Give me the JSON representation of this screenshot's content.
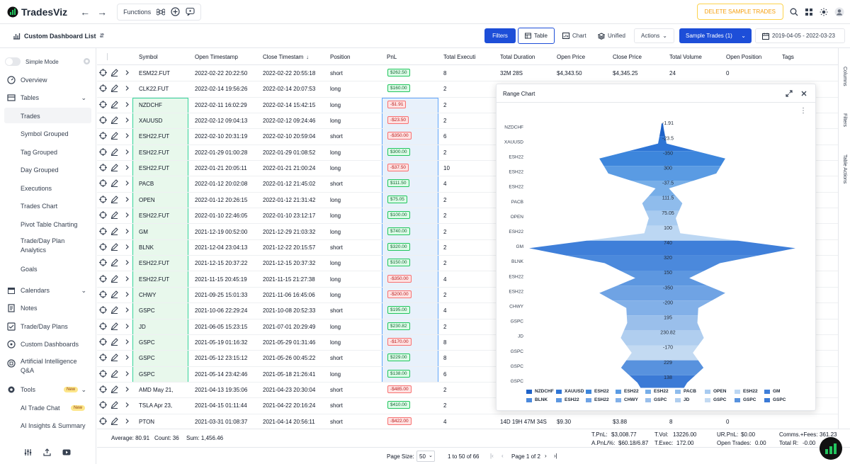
{
  "app": {
    "name": "TradesViz"
  },
  "topbar": {
    "functions_label": "Functions",
    "delete_sample_label": "DELETE SAMPLE TRADES"
  },
  "dashbar": {
    "title": "Custom Dashboard List",
    "filters_label": "Filters",
    "table_label": "Table",
    "chart_label": "Chart",
    "unified_label": "Unified",
    "actions_label": "Actions",
    "sample_trades_label": "Sample Trades (1)",
    "date_range": "2019-04-05 - 2022-03-23"
  },
  "sidebar": {
    "simple_mode_label": "Simple Mode",
    "items": [
      {
        "label": "Overview"
      },
      {
        "label": "Tables"
      },
      {
        "label": "Trades"
      },
      {
        "label": "Symbol Grouped"
      },
      {
        "label": "Tag Grouped"
      },
      {
        "label": "Day Grouped"
      },
      {
        "label": "Executions"
      },
      {
        "label": "Trades Chart"
      },
      {
        "label": "Pivot Table Charting"
      },
      {
        "label": "Trade/Day Plan"
      },
      {
        "label": "Analytics"
      },
      {
        "label": "Goals"
      },
      {
        "label": "Calendars"
      },
      {
        "label": "Notes"
      },
      {
        "label": "Trade/Day Plans"
      },
      {
        "label": "Custom Dashboards"
      },
      {
        "label": "Artificial Intelligence"
      },
      {
        "label": "Q&A"
      },
      {
        "label": "Tools"
      },
      {
        "label": "AI Trade Chat"
      },
      {
        "label": "AI Insights & Summary"
      }
    ],
    "new_badge": "New"
  },
  "table": {
    "columns": [
      "Symbol",
      "Open Timestamp",
      "Close Timestam",
      "Position",
      "PnL",
      "Total Executi",
      "Total Duration",
      "Open Price",
      "Close Price",
      "Total Volume",
      "Open Position",
      "Tags"
    ],
    "rows": [
      {
        "symbol": "ESM22.FUT",
        "open": "2022-02-22 20:22:50",
        "close": "2022-02-22 20:55:18",
        "position": "short",
        "pnl": "$262.50",
        "neg": false,
        "exec": "8",
        "duration": "32M 28S",
        "open_price": "$4,343.50",
        "close_price": "$4,345.25",
        "volume": "24",
        "open_pos": "0"
      },
      {
        "symbol": "CLK22.FUT",
        "open": "2022-02-14 19:56:26",
        "close": "2022-02-14 20:07:53",
        "position": "long",
        "pnl": "$160.00",
        "neg": false,
        "exec": "2"
      },
      {
        "symbol": "NZDCHF",
        "open": "2022-02-11 16:02:29",
        "close": "2022-02-14 15:42:15",
        "position": "long",
        "pnl": "-$1.91",
        "neg": true,
        "exec": "2"
      },
      {
        "symbol": "XAUUSD",
        "open": "2022-02-12 09:04:13",
        "close": "2022-02-12 09:24:46",
        "position": "long",
        "pnl": "-$23.50",
        "neg": true,
        "exec": "2"
      },
      {
        "symbol": "ESH22.FUT",
        "open": "2022-02-10 20:31:19",
        "close": "2022-02-10 20:59:04",
        "position": "short",
        "pnl": "-$350.00",
        "neg": true,
        "exec": "6"
      },
      {
        "symbol": "ESH22.FUT",
        "open": "2022-01-29 01:00:28",
        "close": "2022-01-29 01:08:52",
        "position": "long",
        "pnl": "$300.00",
        "neg": false,
        "exec": "2"
      },
      {
        "symbol": "ESH22.FUT",
        "open": "2022-01-21 20:05:11",
        "close": "2022-01-21 21:00:24",
        "position": "long",
        "pnl": "-$37.50",
        "neg": true,
        "exec": "10"
      },
      {
        "symbol": "PACB",
        "open": "2022-01-12 20:02:08",
        "close": "2022-01-12 21:45:02",
        "position": "short",
        "pnl": "$111.50",
        "neg": false,
        "exec": "4"
      },
      {
        "symbol": "OPEN",
        "open": "2022-01-12 20:26:15",
        "close": "2022-01-12 21:31:42",
        "position": "long",
        "pnl": "$75.05",
        "neg": false,
        "exec": "2"
      },
      {
        "symbol": "ESH22.FUT",
        "open": "2022-01-10 22:46:05",
        "close": "2022-01-10 23:12:17",
        "position": "long",
        "pnl": "$100.00",
        "neg": false,
        "exec": "2"
      },
      {
        "symbol": "GM",
        "open": "2021-12-19 00:52:00",
        "close": "2021-12-29 21:03:32",
        "position": "long",
        "pnl": "$740.00",
        "neg": false,
        "exec": "2"
      },
      {
        "symbol": "BLNK",
        "open": "2021-12-04 23:04:13",
        "close": "2021-12-22 20:15:57",
        "position": "short",
        "pnl": "$320.00",
        "neg": false,
        "exec": "2"
      },
      {
        "symbol": "ESH22.FUT",
        "open": "2021-12-15 20:37:22",
        "close": "2021-12-15 20:37:32",
        "position": "long",
        "pnl": "$150.00",
        "neg": false,
        "exec": "2"
      },
      {
        "symbol": "ESH22.FUT",
        "open": "2021-11-15 20:45:19",
        "close": "2021-11-15 21:27:38",
        "position": "long",
        "pnl": "-$350.00",
        "neg": true,
        "exec": "4"
      },
      {
        "symbol": "CHWY",
        "open": "2021-09-25 15:01:33",
        "close": "2021-11-06 16:45:06",
        "position": "long",
        "pnl": "-$200.00",
        "neg": true,
        "exec": "2"
      },
      {
        "symbol": "GSPC",
        "open": "2021-10-06 22:29:24",
        "close": "2021-10-08 20:52:33",
        "position": "short",
        "pnl": "$195.00",
        "neg": false,
        "exec": "4"
      },
      {
        "symbol": "JD",
        "open": "2021-06-05 15:23:15",
        "close": "2021-07-01 20:29:49",
        "position": "long",
        "pnl": "$230.82",
        "neg": false,
        "exec": "2"
      },
      {
        "symbol": "GSPC",
        "open": "2021-05-19 01:16:32",
        "close": "2021-05-29 01:31:46",
        "position": "long",
        "pnl": "-$170.00",
        "neg": true,
        "exec": "8"
      },
      {
        "symbol": "GSPC",
        "open": "2021-05-12 23:15:12",
        "close": "2021-05-26 00:45:22",
        "position": "short",
        "pnl": "$229.00",
        "neg": false,
        "exec": "8"
      },
      {
        "symbol": "GSPC",
        "open": "2021-05-14 23:42:46",
        "close": "2021-05-18 21:26:41",
        "position": "long",
        "pnl": "$138.00",
        "neg": false,
        "exec": "6"
      },
      {
        "symbol": "AMD May 21,",
        "open": "2021-04-13 19:35:06",
        "close": "2021-04-23 20:30:04",
        "position": "short",
        "pnl": "-$485.00",
        "neg": true,
        "exec": "2"
      },
      {
        "symbol": "TSLA Apr 23,",
        "open": "2021-04-15 01:11:44",
        "close": "2021-04-22 20:16:24",
        "position": "short",
        "pnl": "$410.00",
        "neg": false,
        "exec": "2"
      },
      {
        "symbol": "PTON",
        "open": "2021-03-31 01:08:37",
        "close": "2021-04-14 20:56:11",
        "position": "short",
        "pnl": "-$422.00",
        "neg": true,
        "exec": "4",
        "duration": "14D 19H 47M 34S",
        "open_price": "$9.30",
        "close_price": "$3.88",
        "volume": "8",
        "open_pos": "0"
      }
    ]
  },
  "right_rail": {
    "columns": "Columns",
    "filters": "Filters",
    "table_actions": "Table Actions"
  },
  "summary": {
    "average": "Average: 80.91",
    "count": "Count: 36",
    "sum": "Sum: 1,456.46",
    "tpnl_label": "T.PnL:",
    "tpnl": "$3,008.77",
    "apnl_label": "A.PnL/%:",
    "apnl": "$60.18/6.87",
    "tvol_label": "T.Vol:",
    "tvol": "13226.00",
    "texec_label": "T.Exec:",
    "texec": "172.00",
    "urpnl_label": "UR.PnL:",
    "urpnl": "$0.00",
    "open_trades_label": "Open Trades:",
    "open_trades": "0.00",
    "comms_label": "Comms.+Fees:",
    "comms": "361.23",
    "total_r_label": "Total R:",
    "total_r": "-0.00"
  },
  "pagination": {
    "page_size_label": "Page Size:",
    "page_size": "50",
    "range": "1 to 50 of 66",
    "page": "Page 1 of 2"
  },
  "panel": {
    "title": "Range Chart"
  },
  "chart_data": {
    "type": "funnel",
    "categories": [
      "NZDCHF",
      "XAUUSD",
      "ESH22",
      "ESH22",
      "ESH22",
      "PACB",
      "OPEN",
      "ESH22",
      "GM",
      "BLNK",
      "ESH22",
      "ESH22",
      "CHWY",
      "GSPC",
      "JD",
      "GSPC",
      "GSPC",
      "GSPC"
    ],
    "values": [
      -1.91,
      -23.5,
      -350,
      300,
      -37.5,
      111.5,
      75.05,
      100,
      740,
      320,
      150,
      -350,
      -200,
      195,
      230.82,
      -170,
      229,
      138
    ],
    "value_labels": [
      "-1.91",
      "-23.5",
      "-350",
      "300",
      "-37.5",
      "111.5",
      "75.05",
      "100",
      "740",
      "320",
      "150",
      "-350",
      "-200",
      "195",
      "230.82",
      "-170",
      "229",
      "138"
    ],
    "colors": [
      "#1e62c8",
      "#2e75d6",
      "#3d86dc",
      "#5a9be3",
      "#77aee8",
      "#8fbcec",
      "#a8cbf0",
      "#bcd7f3",
      "#3f7fd9",
      "#4b89dc",
      "#5d97e0",
      "#6fa3e4",
      "#82b0e8",
      "#9abfeb",
      "#b0ceef",
      "#c3daf2",
      "#5892de",
      "#3b7ad6"
    ],
    "legend": [
      "NZDCHF",
      "XAUUSD",
      "ESH22",
      "ESH22",
      "ESH22",
      "PACB",
      "OPEN",
      "ESH22",
      "GM",
      "BLNK",
      "ESH22",
      "ESH22",
      "CHWY",
      "GSPC",
      "JD",
      "GSPC",
      "GSPC",
      "GSPC"
    ],
    "legend_placement": "bottom"
  }
}
